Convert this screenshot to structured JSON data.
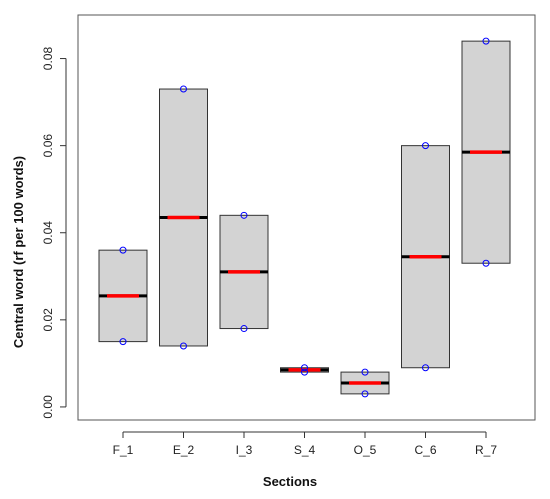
{
  "chart_data": {
    "type": "boxplot",
    "title": "",
    "xlabel": "Sections",
    "ylabel": "Central word (rf per 100 words)",
    "ylim": [
      -0.003,
      0.09
    ],
    "yticks": [
      0.0,
      0.02,
      0.04,
      0.06,
      0.08
    ],
    "ytick_labels": [
      "0.00",
      "0.02",
      "0.04",
      "0.06",
      "0.08"
    ],
    "grid": false,
    "categories": [
      "F_1",
      "E_2",
      "I_3",
      "S_4",
      "O_5",
      "C_6",
      "R_7"
    ],
    "boxes": [
      {
        "q1": 0.015,
        "median": 0.0255,
        "q3": 0.036
      },
      {
        "q1": 0.014,
        "median": 0.0435,
        "q3": 0.073
      },
      {
        "q1": 0.018,
        "median": 0.031,
        "q3": 0.044
      },
      {
        "q1": 0.008,
        "median": 0.0085,
        "q3": 0.009
      },
      {
        "q1": 0.003,
        "median": 0.0055,
        "q3": 0.008
      },
      {
        "q1": 0.009,
        "median": 0.0345,
        "q3": 0.06
      },
      {
        "q1": 0.033,
        "median": 0.0585,
        "q3": 0.084
      }
    ],
    "points": [
      [
        0.036,
        0.015
      ],
      [
        0.073,
        0.014
      ],
      [
        0.044,
        0.018
      ],
      [
        0.009,
        0.008
      ],
      [
        0.008,
        0.003
      ],
      [
        0.06,
        0.009
      ],
      [
        0.084,
        0.033
      ]
    ],
    "colors": {
      "box_fill": "#d3d3d3",
      "box_stroke": "#333333",
      "median_line": "#000000",
      "mean_line": "#ff0000",
      "points": "#0000ff"
    }
  }
}
